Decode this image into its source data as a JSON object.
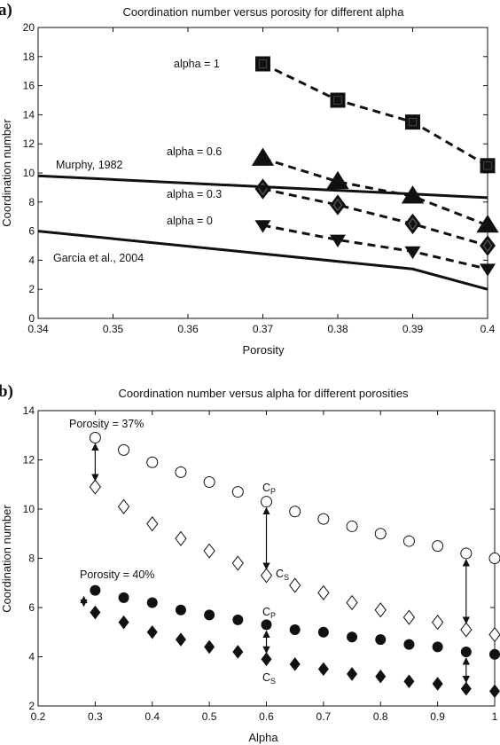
{
  "colors": {
    "ink": "#111111",
    "background": "#ffffff"
  },
  "chart_data": [
    {
      "panel": "a)",
      "type": "line",
      "title": "Coordination number versus porosity for different alpha",
      "xlabel": "Porosity",
      "ylabel": "Coordination number",
      "xlim": [
        0.34,
        0.4
      ],
      "ylim": [
        0,
        20
      ],
      "xticks": [
        0.34,
        0.35,
        0.36,
        0.37,
        0.38,
        0.39,
        0.4
      ],
      "xtick_labels": [
        "0.34",
        "0.35",
        "0.36",
        "0.37",
        "0.38",
        "0.39",
        "0.4"
      ],
      "yticks": [
        0,
        2,
        4,
        6,
        8,
        10,
        12,
        14,
        16,
        18,
        20
      ],
      "yticks_labels": [
        "0",
        "2",
        "4",
        "6",
        "8",
        "10",
        "12",
        "14",
        "16",
        "18",
        "20"
      ],
      "grid": false,
      "series": [
        {
          "name": "alpha = 1",
          "marker": "square",
          "style": "dashed",
          "x": [
            0.37,
            0.38,
            0.39,
            0.4
          ],
          "y": [
            17.5,
            15.0,
            13.5,
            10.5
          ]
        },
        {
          "name": "alpha = 0.6",
          "marker": "triangle-up",
          "style": "dashed",
          "x": [
            0.37,
            0.38,
            0.39,
            0.4
          ],
          "y": [
            11.0,
            9.4,
            8.4,
            6.4
          ]
        },
        {
          "name": "alpha = 0.3",
          "marker": "diamond",
          "style": "dashed",
          "x": [
            0.37,
            0.38,
            0.39,
            0.4
          ],
          "y": [
            8.9,
            7.8,
            6.5,
            5.0
          ]
        },
        {
          "name": "alpha = 0",
          "marker": "triangle-down",
          "style": "dashed",
          "x": [
            0.37,
            0.38,
            0.39,
            0.4
          ],
          "y": [
            6.4,
            5.4,
            4.6,
            3.4
          ]
        },
        {
          "name": "Murphy, 1982",
          "marker": "none",
          "style": "solid",
          "x": [
            0.34,
            0.4
          ],
          "y": [
            9.8,
            8.3
          ]
        },
        {
          "name": "Garcia et al., 2004",
          "marker": "none",
          "style": "solid",
          "x": [
            0.34,
            0.39,
            0.4
          ],
          "y": [
            6.0,
            3.4,
            2.0
          ]
        }
      ]
    },
    {
      "panel": "b)",
      "type": "scatter",
      "title": "Coordination number versus alpha for different porosities",
      "xlabel": "Alpha",
      "ylabel": "Coordination number",
      "xlim": [
        0.2,
        1.0
      ],
      "ylim": [
        2,
        14
      ],
      "xticks": [
        0.2,
        0.3,
        0.4,
        0.5,
        0.6,
        0.7,
        0.8,
        0.9,
        1.0
      ],
      "xtick_labels": [
        "0.2",
        "0.3",
        "0.4",
        "0.5",
        "0.6",
        "0.7",
        "0.8",
        "0.9",
        "1"
      ],
      "yticks": [
        2,
        4,
        6,
        8,
        10,
        12,
        14
      ],
      "yticks_labels": [
        "2",
        "4",
        "6",
        "8",
        "10",
        "12",
        "14"
      ],
      "grid": false,
      "x": [
        0.3,
        0.35,
        0.4,
        0.45,
        0.5,
        0.55,
        0.6,
        0.65,
        0.7,
        0.75,
        0.8,
        0.85,
        0.9,
        0.95,
        1.0
      ],
      "series": [
        {
          "marker": "circle-open",
          "y": [
            12.9,
            12.4,
            11.9,
            11.5,
            11.1,
            10.7,
            10.3,
            9.9,
            9.6,
            9.3,
            9.0,
            8.7,
            8.5,
            8.2,
            8.0
          ]
        },
        {
          "marker": "diamond-open",
          "y": [
            10.9,
            10.1,
            9.4,
            8.8,
            8.3,
            7.8,
            7.3,
            6.9,
            6.6,
            6.2,
            5.9,
            5.6,
            5.4,
            5.1,
            4.9
          ]
        },
        {
          "marker": "circle-filled",
          "y": [
            6.7,
            6.4,
            6.2,
            5.9,
            5.7,
            5.5,
            5.3,
            5.1,
            5.0,
            4.8,
            4.7,
            4.5,
            4.4,
            4.2,
            4.1
          ]
        },
        {
          "marker": "diamond-filled",
          "y": [
            5.8,
            5.4,
            5.0,
            4.7,
            4.4,
            4.2,
            3.9,
            3.7,
            3.5,
            3.3,
            3.2,
            3.0,
            2.9,
            2.7,
            2.6
          ]
        }
      ],
      "annotations": {
        "porosity_37": "Porosity = 37%",
        "porosity_40": "Porosity = 40%",
        "cp": "C",
        "cp_sub": "P",
        "cs": "C",
        "cs_sub": "S"
      },
      "arrows": [
        {
          "x": 0.3,
          "from": 12.9,
          "to": 10.9
        },
        {
          "x": 0.6,
          "from": 10.3,
          "to": 7.3
        },
        {
          "x": 0.95,
          "from": 8.2,
          "to": 5.1
        },
        {
          "x": 0.28,
          "from": 6.7,
          "to": 5.8
        },
        {
          "x": 0.6,
          "from": 5.3,
          "to": 3.9
        },
        {
          "x": 0.95,
          "from": 4.2,
          "to": 2.7
        }
      ]
    }
  ]
}
